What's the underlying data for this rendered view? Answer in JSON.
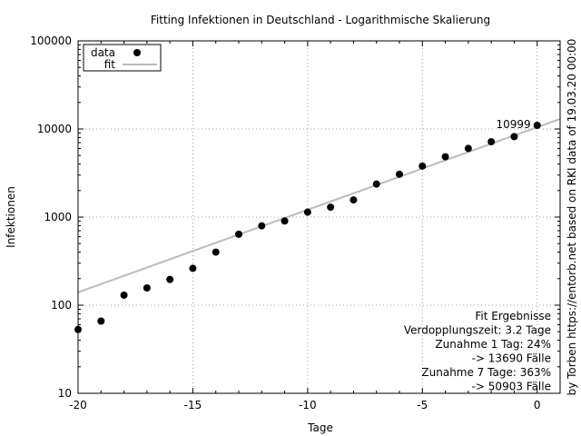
{
  "chart_data": {
    "type": "scatter",
    "title": "Fitting Infektionen in Deutschland - Logarithmische Skalierung",
    "xlabel": "Tage",
    "ylabel": "Infektionen",
    "right_label": "by Torben https://entorb.net based on RKI data of 19.03.20 00:00",
    "xlim": [
      -20,
      1
    ],
    "ylim": [
      10,
      100000
    ],
    "y_scale": "log",
    "grid": true,
    "legend_position": "top-left",
    "x_ticks": [
      -20,
      -15,
      -10,
      -5,
      0
    ],
    "x_tick_labels": [
      "-20",
      "-15",
      "-10",
      "-5",
      "0"
    ],
    "y_ticks": [
      10,
      100,
      1000,
      10000,
      100000
    ],
    "y_tick_labels": [
      "10",
      "100",
      "1000",
      "10000",
      "100000"
    ],
    "series": [
      {
        "name": "data",
        "kind": "points",
        "color": "#000000",
        "x": [
          -20,
          -19,
          -18,
          -17,
          -16,
          -15,
          -14,
          -13,
          -12,
          -11,
          -10,
          -9,
          -8,
          -7,
          -6,
          -5,
          -4,
          -3,
          -2,
          -1,
          0
        ],
        "y": [
          53,
          66,
          130,
          157,
          196,
          262,
          400,
          639,
          795,
          903,
          1139,
          1296,
          1567,
          2369,
          3062,
          3795,
          4838,
          6012,
          7156,
          8198,
          10999
        ]
      },
      {
        "name": "fit",
        "kind": "line",
        "color": "#bbbbbb",
        "x": [
          -20,
          1
        ],
        "y": [
          140,
          13000
        ]
      }
    ],
    "point_label": {
      "x": 0,
      "y": 10999,
      "text": "10999"
    },
    "annotation": [
      "Fit Ergebnisse",
      "Verdopplungszeit: 3.2 Tage",
      "Zunahme 1 Tag: 24%",
      "-> 13690 Fälle",
      "Zunahme 7 Tage: 363%",
      "-> 50903 Fälle"
    ]
  }
}
